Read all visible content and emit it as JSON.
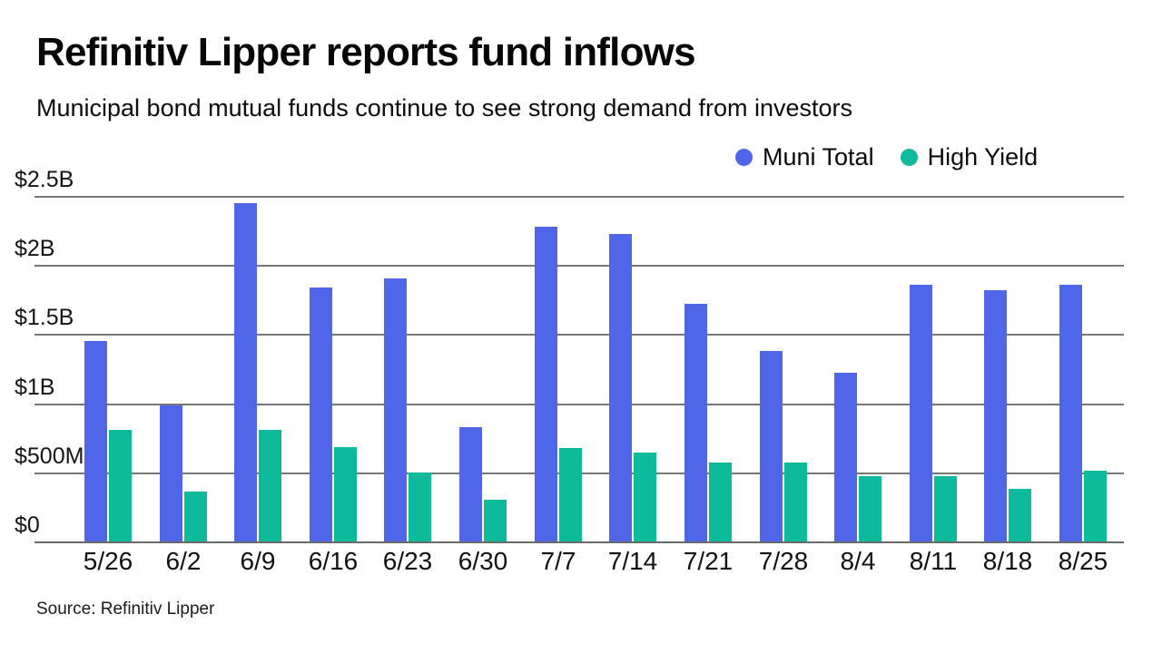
{
  "header": {
    "title": "Refinitiv Lipper reports fund inflows",
    "subtitle": "Municipal bond mutual funds continue to see strong demand from investors"
  },
  "legend": {
    "items": [
      {
        "label": "Muni Total",
        "color": "#4F66E8"
      },
      {
        "label": "High Yield",
        "color": "#0EBA9C"
      }
    ]
  },
  "chart_data": {
    "type": "bar",
    "title": "Refinitiv Lipper reports fund inflows",
    "subtitle": "Municipal bond mutual funds continue to see strong demand from investors",
    "unit": "USD millions",
    "categories": [
      "5/26",
      "6/2",
      "6/9",
      "6/16",
      "6/23",
      "6/30",
      "7/7",
      "7/14",
      "7/21",
      "7/28",
      "8/4",
      "8/11",
      "8/18",
      "8/25"
    ],
    "series": [
      {
        "name": "Muni Total",
        "color": "#4F66E8",
        "values": [
          1450,
          985,
          2450,
          1840,
          1900,
          825,
          2280,
          2225,
          1720,
          1380,
          1220,
          1855,
          1815,
          1855
        ]
      },
      {
        "name": "High Yield",
        "color": "#0EBA9C",
        "values": [
          810,
          360,
          810,
          685,
          500,
          300,
          675,
          640,
          570,
          570,
          475,
          475,
          380,
          515
        ]
      }
    ],
    "ylim": [
      0,
      2500
    ],
    "y_ticks": [
      {
        "label": "$2.5B",
        "value": 2500
      },
      {
        "label": "$2B",
        "value": 2000
      },
      {
        "label": "$1.5B",
        "value": 1500
      },
      {
        "label": "$1B",
        "value": 1000
      },
      {
        "label": "$500M",
        "value": 500
      },
      {
        "label": "$0",
        "value": 0
      }
    ],
    "grid": true,
    "legend_position": "top-right"
  },
  "colors": {
    "gridline": "#777777",
    "axis_line": "#6a6a6a"
  },
  "footer": {
    "source": "Source: Refinitiv Lipper"
  }
}
